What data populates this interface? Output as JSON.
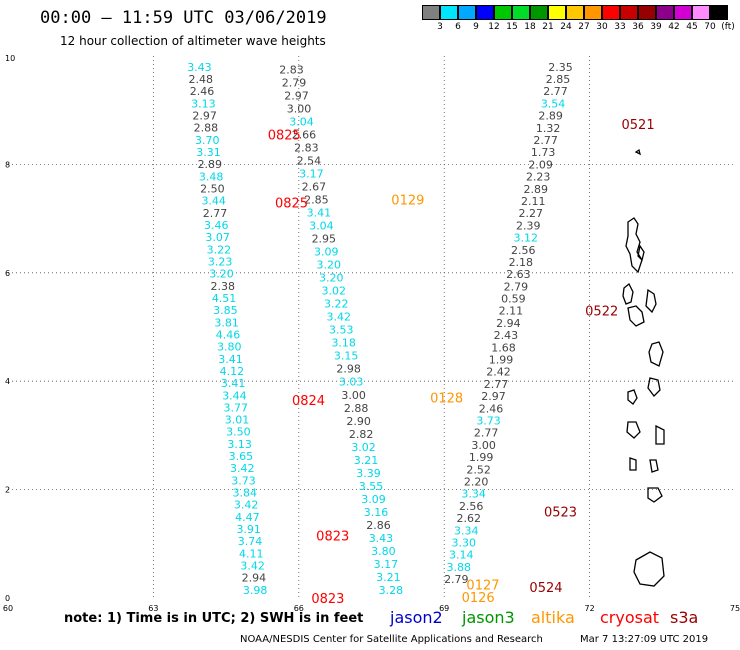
{
  "header": {
    "title": "00:00 – 11:59 UTC 03/06/2019",
    "subtitle": "12 hour collection of altimeter wave heights"
  },
  "colorbar": {
    "labels": [
      "3",
      "6",
      "9",
      "12",
      "15",
      "18",
      "21",
      "24",
      "27",
      "30",
      "33",
      "36",
      "39",
      "42",
      "45",
      "70",
      "(ft)"
    ],
    "colors": [
      "#808080",
      "#00e5ff",
      "#00a8ff",
      "#0000ff",
      "#00c800",
      "#00dc28",
      "#009600",
      "#ffff00",
      "#ffc800",
      "#ff9600",
      "#ff0000",
      "#c80000",
      "#960000",
      "#8c008c",
      "#d200d2",
      "#ff8cff",
      "#000000"
    ]
  },
  "note": "note:  1) Time is in UTC;  2) SWH is in feet",
  "satellites": [
    {
      "name": "jason2",
      "color": "#0000cc"
    },
    {
      "name": "jason3",
      "color": "#009600"
    },
    {
      "name": "altika",
      "color": "#ff9600"
    },
    {
      "name": "cryosat",
      "color": "#ff0000"
    },
    {
      "name": "s3a",
      "color": "#960000"
    }
  ],
  "footer": {
    "credit": "NOAA/NESDIS Center for Satellite Applications and Research",
    "timestamp": "Mar  7 13:27:09 UTC 2019"
  },
  "chart_data": {
    "type": "scatter",
    "xlim": [
      60,
      75
    ],
    "ylim": [
      0,
      10
    ],
    "x_ticks": [
      "60",
      "63",
      "66",
      "69",
      "72",
      "75"
    ],
    "y_ticks": [
      "0",
      "2",
      "4",
      "6",
      "8",
      "10"
    ],
    "tracks": [
      {
        "color": "#00d8e8",
        "x0": 63.95,
        "y0": 9.8,
        "x1": 65.1,
        "y1": 0.15,
        "values": [
          "3.43",
          "2.48",
          "2.46",
          "3.13",
          "2.97",
          "2.88",
          "3.70",
          "3.31",
          "2.89",
          "3.48",
          "2.50",
          "3.44",
          "2.77",
          "3.46",
          "3.07",
          "3.22",
          "3.23",
          "3.20",
          "2.38",
          "4.51",
          "3.85",
          "3.81",
          "4.46",
          "3.80",
          "3.41",
          "4.12",
          "3.41",
          "3.44",
          "3.77",
          "3.01",
          "3.50",
          "3.13",
          "3.65",
          "3.42",
          "3.73",
          "3.84",
          "3.42",
          "4.47",
          "3.91",
          "3.74",
          "4.11",
          "3.42",
          "2.94",
          "3.98"
        ],
        "gray_idx": [
          1,
          2,
          4,
          5,
          8,
          10,
          12,
          18,
          42
        ]
      },
      {
        "color": "#00d8e8",
        "x0": 65.85,
        "y0": 9.75,
        "x1": 67.9,
        "y1": 0.15,
        "values": [
          "2.83",
          "2.79",
          "2.97",
          "3.00",
          "3.04",
          "2.66",
          "2.83",
          "2.54",
          "3.17",
          "2.67",
          "2.85",
          "3.41",
          "3.04",
          "2.95",
          "3.09",
          "3.20",
          "3.20",
          "3.02",
          "3.22",
          "3.42",
          "3.53",
          "3.18",
          "3.15",
          "2.98",
          "3.03",
          "3.00",
          "2.88",
          "2.90",
          "2.82",
          "3.02",
          "3.21",
          "3.39",
          "3.55",
          "3.09",
          "3.16",
          "2.86",
          "3.43",
          "3.80",
          "3.17",
          "3.21",
          "3.28"
        ],
        "gray_idx": [
          0,
          1,
          2,
          3,
          5,
          6,
          7,
          9,
          10,
          13,
          23,
          25,
          26,
          27,
          28,
          35
        ]
      },
      {
        "color": "#00d8e8",
        "x0": 71.4,
        "y0": 9.8,
        "x1": 69.25,
        "y1": 0.35,
        "values": [
          "2.35",
          "2.85",
          "2.77",
          "3.54",
          "2.89",
          "1.32",
          "2.77",
          "1.73",
          "2.09",
          "2.23",
          "2.89",
          "2.11",
          "2.27",
          "2.39",
          "3.12",
          "2.56",
          "2.18",
          "2.63",
          "2.79",
          "0.59",
          "2.11",
          "2.94",
          "2.43",
          "1.68",
          "1.99",
          "2.42",
          "2.77",
          "2.97",
          "2.46",
          "3.73",
          "2.77",
          "3.00",
          "1.99",
          "2.52",
          "2.20",
          "3.34",
          "2.56",
          "2.62",
          "3.34",
          "3.30",
          "3.14",
          "3.88",
          "2.79"
        ],
        "gray_idx": [
          0,
          1,
          2,
          4,
          5,
          6,
          7,
          8,
          9,
          10,
          11,
          12,
          13,
          15,
          16,
          17,
          18,
          19,
          20,
          21,
          22,
          23,
          24,
          25,
          26,
          27,
          28,
          30,
          31,
          32,
          33,
          34,
          36,
          37,
          42
        ]
      }
    ],
    "time_labels": [
      {
        "text": "0825",
        "x": 65.7,
        "y": 8.55,
        "color": "#ff0000"
      },
      {
        "text": "0825",
        "x": 65.85,
        "y": 7.3,
        "color": "#ff0000"
      },
      {
        "text": "0129",
        "x": 68.25,
        "y": 7.35,
        "color": "#ff9600"
      },
      {
        "text": "0824",
        "x": 66.2,
        "y": 3.65,
        "color": "#ff0000"
      },
      {
        "text": "0128",
        "x": 69.05,
        "y": 3.7,
        "color": "#ff9600"
      },
      {
        "text": "0823",
        "x": 66.7,
        "y": 1.15,
        "color": "#ff0000"
      },
      {
        "text": "0823",
        "x": 66.6,
        "y": 0.0,
        "color": "#ff0000"
      },
      {
        "text": "0127",
        "x": 69.8,
        "y": 0.25,
        "color": "#ff9600"
      },
      {
        "text": "0126",
        "x": 69.7,
        "y": 0.02,
        "color": "#ff9600"
      },
      {
        "text": "0521",
        "x": 73.0,
        "y": 8.75,
        "color": "#960000"
      },
      {
        "text": "0522",
        "x": 72.25,
        "y": 5.3,
        "color": "#960000"
      },
      {
        "text": "0523",
        "x": 71.4,
        "y": 1.6,
        "color": "#960000"
      },
      {
        "text": "0524",
        "x": 71.1,
        "y": 0.2,
        "color": "#960000"
      }
    ]
  }
}
